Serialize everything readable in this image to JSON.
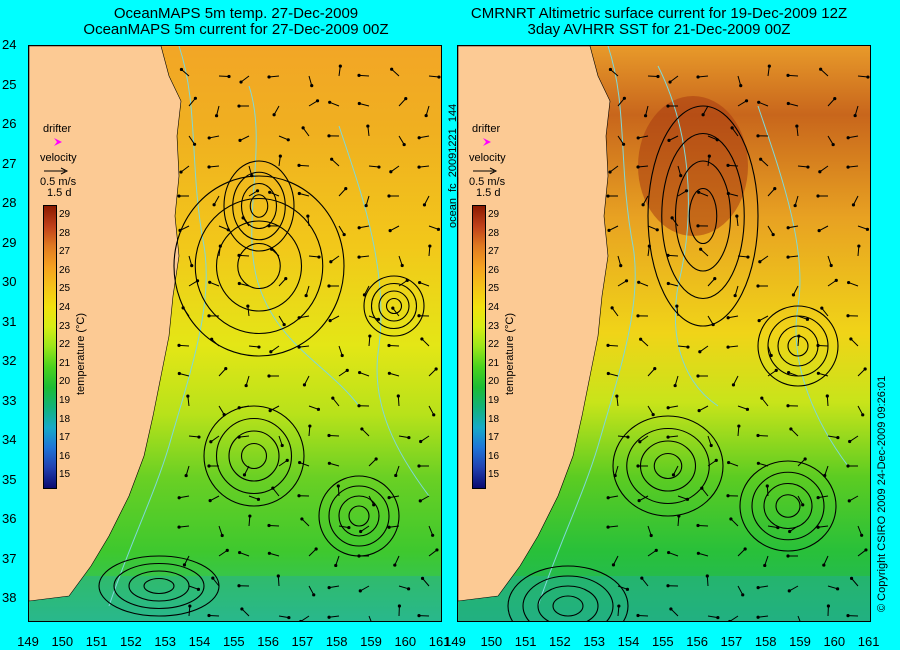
{
  "titles": {
    "left": {
      "line1": "OceanMAPS 5m temp. 27-Dec-2009",
      "line2": "OceanMAPS 5m current for 27-Dec-2009 00Z"
    },
    "right": {
      "line1": "CMRNRT Altimetric surface current for 19-Dec-2009 12Z",
      "line2": "3day AVHRR SST for 21-Dec-2009 00Z"
    }
  },
  "axes": {
    "latitudes": [
      "24",
      "25",
      "26",
      "27",
      "28",
      "29",
      "30",
      "31",
      "32",
      "33",
      "34",
      "35",
      "36",
      "37",
      "38"
    ],
    "longitudes": [
      "149",
      "150",
      "151",
      "152",
      "153",
      "154",
      "155",
      "156",
      "157",
      "158",
      "159",
      "160",
      "161"
    ],
    "right_longitudes": [
      "150",
      "151",
      "152",
      "153",
      "154",
      "155",
      "156",
      "157",
      "158",
      "159",
      "160",
      "161"
    ],
    "right_start_longitude": "149"
  },
  "legend": {
    "drifter_label": "drifter",
    "velocity_label": "velocity",
    "scale_speed": "0.5 m/s",
    "scale_time": "1.5 d",
    "colorbar_title": "temperature (°C)",
    "ticks": [
      "29",
      "28",
      "27",
      "26",
      "25",
      "24",
      "23",
      "22",
      "21",
      "20",
      "19",
      "18",
      "17",
      "16",
      "15"
    ]
  },
  "colors": {
    "land": "#fcca94",
    "drifter": "#ff00ff",
    "contour": "#7fd8d8",
    "colorbar_stops": [
      "#8b1a00",
      "#c0401a",
      "#e07a20",
      "#f5a020",
      "#f5c218",
      "#f2e10e",
      "#d6ee14",
      "#9ae61a",
      "#4ad21e",
      "#1cbc34",
      "#12b27a",
      "#16aac8",
      "#1e74d8",
      "#2040b0",
      "#0a0a70"
    ]
  },
  "side_labels": {
    "file_id": "ocean_fc_20091221_144",
    "copyright": "© Copyright CSIRO 2009   24-Dec-2009 09:26:01"
  }
}
